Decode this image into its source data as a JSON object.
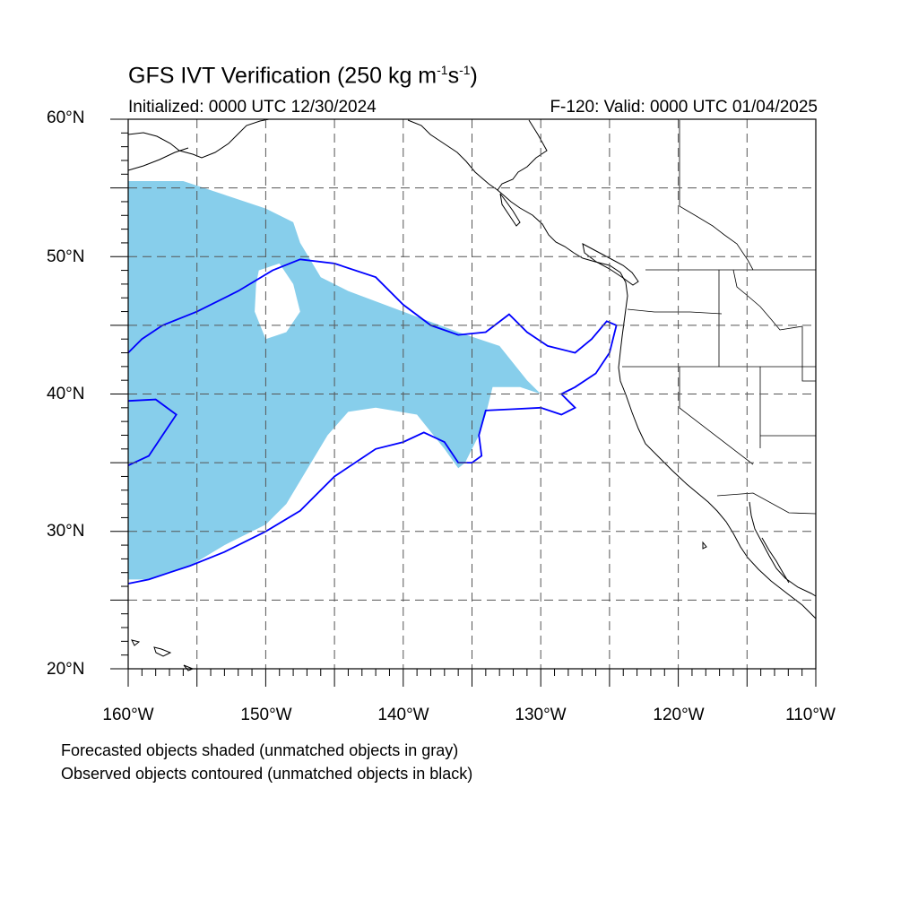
{
  "title_main": "GFS IVT Verification (250 kg m",
  "title_exp1": "-1",
  "title_mid": "s",
  "title_exp2": "-1",
  "title_end": ")",
  "initialized": "Initialized: 0000 UTC 12/30/2024",
  "valid": "F-120: Valid: 0000 UTC 01/04/2025",
  "lat_labels": [
    "60°N",
    "50°N",
    "40°N",
    "30°N",
    "20°N"
  ],
  "lon_labels": [
    "160°W",
    "150°W",
    "140°W",
    "130°W",
    "120°W",
    "110°W"
  ],
  "notes": [
    "Forecasted objects shaded (unmatched objects in gray)",
    "Observed objects contoured (unmatched objects in black)"
  ],
  "map": {
    "lon_range": [
      -160,
      -110
    ],
    "lat_range": [
      20,
      60
    ],
    "grid_spacing_deg": 5,
    "forecast_fill_color": "#87ceeb",
    "observed_contour_color": "#0000ff",
    "forecast_object_outline": [
      [
        -160,
        55.5
      ],
      [
        -156,
        55.5
      ],
      [
        -153,
        54.5
      ],
      [
        -150,
        53.5
      ],
      [
        -148,
        52.5
      ],
      [
        -147.5,
        51
      ],
      [
        -146,
        48.5
      ],
      [
        -144,
        47.5
      ],
      [
        -140,
        46
      ],
      [
        -136,
        44.5
      ],
      [
        -133,
        43.5
      ],
      [
        -131,
        41
      ],
      [
        -130,
        40
      ],
      [
        -131.5,
        40.5
      ],
      [
        -133.5,
        40.5
      ],
      [
        -134,
        38.5
      ],
      [
        -134.5,
        37
      ],
      [
        -135.5,
        35
      ],
      [
        -136,
        34.6
      ],
      [
        -137,
        36
      ],
      [
        -139,
        38.5
      ],
      [
        -142,
        39
      ],
      [
        -144,
        38.7
      ],
      [
        -145.5,
        37
      ],
      [
        -147,
        34.5
      ],
      [
        -148.5,
        32
      ],
      [
        -150,
        30.5
      ],
      [
        -153,
        29
      ],
      [
        -155.5,
        27.5
      ],
      [
        -158.5,
        26.5
      ],
      [
        -160,
        26.5
      ]
    ],
    "forecast_hole": [
      [
        -150.5,
        49
      ],
      [
        -149,
        49.5
      ],
      [
        -148,
        48
      ],
      [
        -147.5,
        46
      ],
      [
        -148.5,
        44.5
      ],
      [
        -150,
        44
      ],
      [
        -150.8,
        46
      ],
      [
        -150.7,
        48
      ]
    ],
    "observed_object_outline": [
      [
        -160,
        43
      ],
      [
        -159,
        44
      ],
      [
        -157.5,
        45
      ],
      [
        -155,
        46
      ],
      [
        -152,
        47.5
      ],
      [
        -149.5,
        49
      ],
      [
        -147.5,
        49.8
      ],
      [
        -145,
        49.5
      ],
      [
        -142,
        48.5
      ],
      [
        -140,
        46.5
      ],
      [
        -138,
        45
      ],
      [
        -136,
        44.3
      ],
      [
        -134,
        44.5
      ],
      [
        -132.3,
        45.8
      ],
      [
        -131,
        44.5
      ],
      [
        -129.5,
        43.5
      ],
      [
        -127.5,
        43
      ],
      [
        -126.3,
        44
      ],
      [
        -125.2,
        45.3
      ],
      [
        -124.5,
        45
      ],
      [
        -125,
        43
      ],
      [
        -126,
        41.5
      ],
      [
        -127.5,
        40.5
      ],
      [
        -128.5,
        40
      ],
      [
        -127.5,
        39
      ],
      [
        -128.5,
        38.5
      ],
      [
        -130,
        39
      ],
      [
        -132,
        38.9
      ],
      [
        -134,
        38.8
      ],
      [
        -134.5,
        37
      ],
      [
        -134.3,
        35.5
      ],
      [
        -135,
        35
      ],
      [
        -136,
        35
      ],
      [
        -137,
        36.5
      ],
      [
        -138.5,
        37.2
      ],
      [
        -140,
        36.5
      ],
      [
        -142,
        36
      ],
      [
        -145,
        34
      ],
      [
        -147.5,
        31.5
      ],
      [
        -150,
        30
      ],
      [
        -153,
        28.5
      ],
      [
        -155.5,
        27.5
      ],
      [
        -157,
        27
      ],
      [
        -158.5,
        26.5
      ],
      [
        -160,
        26.2
      ]
    ],
    "observed_lobe": [
      [
        -160,
        39.5
      ],
      [
        -158,
        39.6
      ],
      [
        -156.5,
        38.5
      ],
      [
        -157.5,
        37
      ],
      [
        -158.5,
        35.5
      ],
      [
        -160,
        34.8
      ]
    ]
  }
}
